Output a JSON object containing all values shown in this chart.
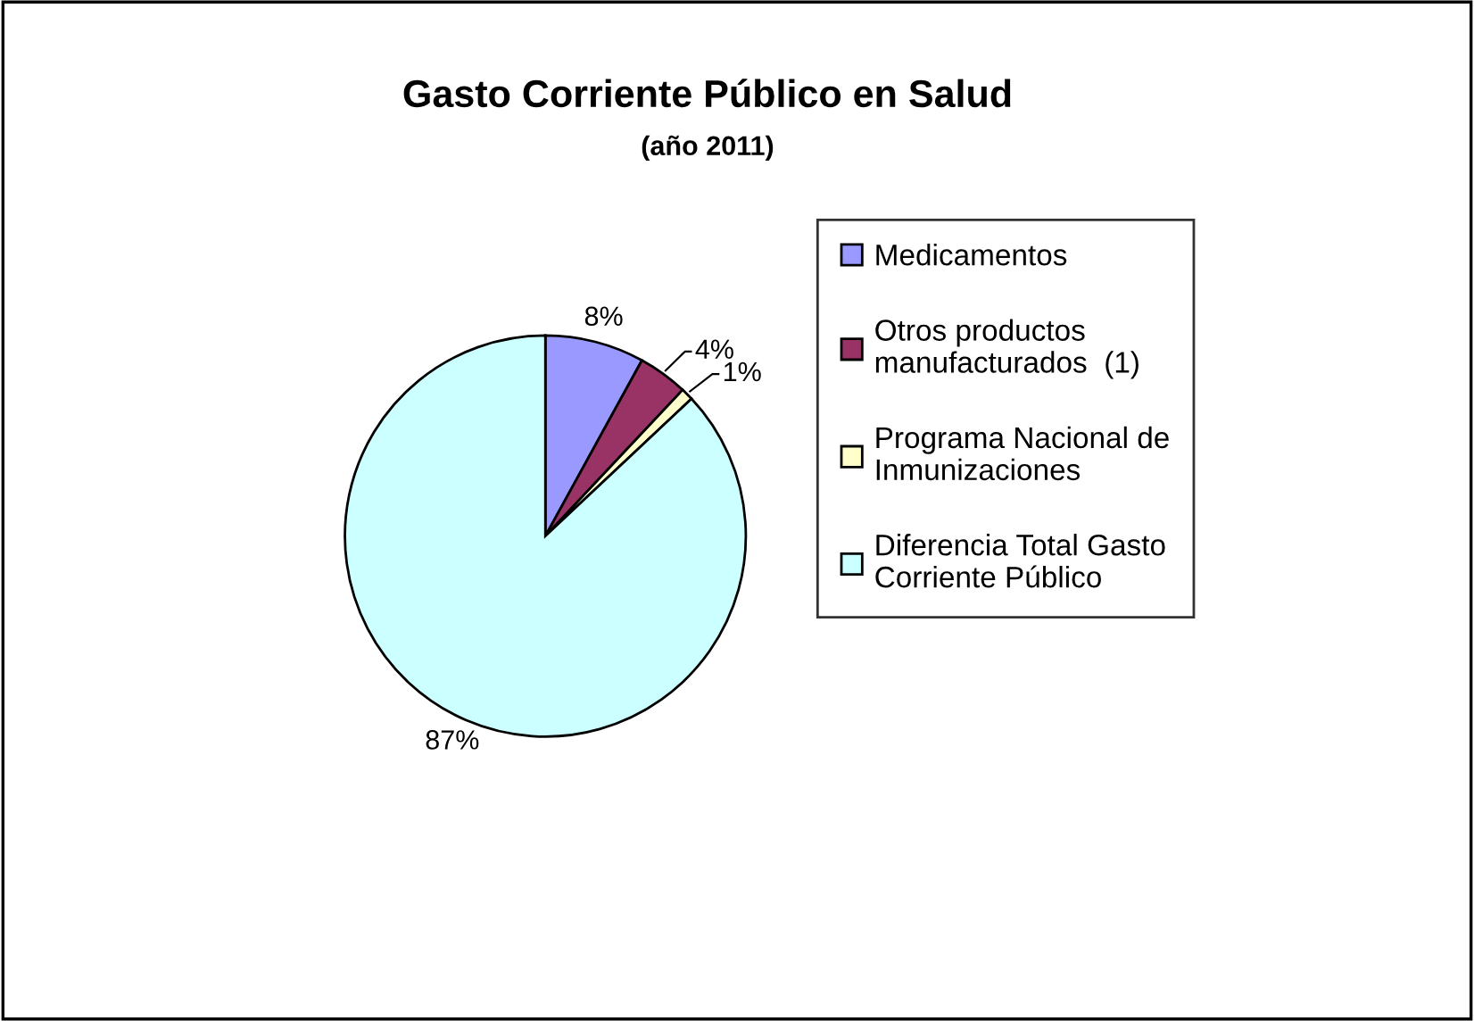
{
  "chart_data": {
    "type": "pie",
    "title": "Gasto Corriente Público en Salud",
    "subtitle": "(año 2011)",
    "categories": [
      "Medicamentos",
      "Otros productos manufacturados  (1)",
      "Programa Nacional de Inmunizaciones",
      "Diferencia Total Gasto Corriente Público"
    ],
    "values": [
      8,
      4,
      1,
      87
    ],
    "value_labels": [
      "8%",
      "4%",
      "1%",
      "87%"
    ],
    "colors": [
      "#9999ff",
      "#993366",
      "#ffffcc",
      "#ccffff"
    ],
    "legend": "right"
  }
}
